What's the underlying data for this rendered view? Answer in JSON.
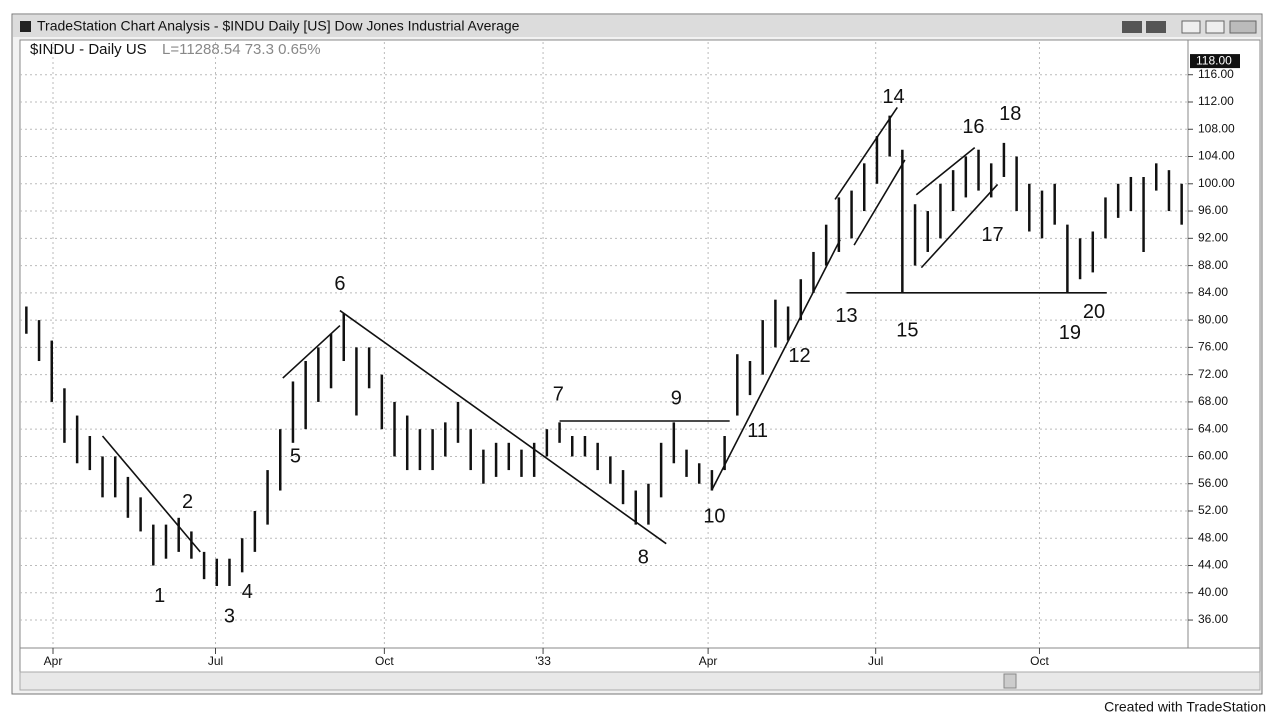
{
  "chart_data": {
    "type": "hilo",
    "window_title": "TradeStation Chart Analysis - $INDU Daily [US] Dow Jones Industrial Average",
    "title": "$INDU - Daily US",
    "subtitle": "L=11288.54 73.3 0.65%",
    "footer": "Created with TradeStation",
    "last_price": {
      "value": 118,
      "label": "118.00"
    },
    "high": [
      82,
      80,
      77,
      70,
      66,
      63,
      60,
      60,
      57,
      54,
      50,
      50,
      51,
      49,
      46,
      45,
      45,
      48,
      52,
      58,
      64,
      71,
      74,
      76,
      78,
      81,
      76,
      76,
      72,
      68,
      66,
      64,
      64,
      65,
      68,
      64,
      61,
      62,
      62,
      61,
      62,
      64,
      65,
      63,
      63,
      62,
      60,
      58,
      55,
      56,
      62,
      65,
      61,
      59,
      58,
      63,
      75,
      74,
      80,
      83,
      82,
      86,
      90,
      94,
      98,
      99,
      103,
      107,
      110,
      105,
      97,
      96,
      100,
      102,
      104,
      105,
      103,
      106,
      104,
      100,
      99,
      100,
      94,
      92,
      93,
      98,
      100,
      101,
      101,
      103,
      102,
      100
    ],
    "low": [
      78,
      74,
      68,
      62,
      59,
      58,
      54,
      54,
      51,
      49,
      44,
      45,
      46,
      45,
      42,
      41,
      41,
      43,
      46,
      50,
      55,
      62,
      64,
      68,
      70,
      74,
      66,
      70,
      64,
      60,
      58,
      58,
      58,
      60,
      62,
      58,
      56,
      57,
      58,
      57,
      57,
      60,
      62,
      60,
      60,
      58,
      56,
      53,
      50,
      50,
      54,
      59,
      57,
      56,
      55,
      58,
      66,
      69,
      72,
      76,
      77,
      80,
      84,
      88,
      90,
      92,
      96,
      100,
      104,
      84,
      88,
      90,
      92,
      96,
      98,
      99,
      98,
      101,
      96,
      93,
      92,
      94,
      84,
      86,
      87,
      92,
      95,
      96,
      90,
      99,
      96,
      94
    ],
    "color": "#111111",
    "xlim": [
      0,
      92
    ],
    "xticks": [
      {
        "value": 2.6,
        "label": "Apr"
      },
      {
        "value": 15.4,
        "label": "Jul"
      },
      {
        "value": 28.7,
        "label": "Oct"
      },
      {
        "value": 41.2,
        "label": "'33"
      },
      {
        "value": 54.2,
        "label": "Apr"
      },
      {
        "value": 67.4,
        "label": "Jul"
      },
      {
        "value": 80.3,
        "label": "Oct"
      }
    ],
    "ylim": [
      31.9,
      120.8
    ],
    "yticks": [
      {
        "value": 36,
        "label": "36.00"
      },
      {
        "value": 40,
        "label": "40.00"
      },
      {
        "value": 44,
        "label": "44.00"
      },
      {
        "value": 48,
        "label": "48.00"
      },
      {
        "value": 52,
        "label": "52.00"
      },
      {
        "value": 56,
        "label": "56.00"
      },
      {
        "value": 60,
        "label": "60.00"
      },
      {
        "value": 64,
        "label": "64.00"
      },
      {
        "value": 68,
        "label": "68.00"
      },
      {
        "value": 72,
        "label": "72.00"
      },
      {
        "value": 76,
        "label": "76.00"
      },
      {
        "value": 80,
        "label": "80.00"
      },
      {
        "value": 84,
        "label": "84.00"
      },
      {
        "value": 88,
        "label": "88.00"
      },
      {
        "value": 92,
        "label": "92.00"
      },
      {
        "value": 96,
        "label": "96.00"
      },
      {
        "value": 100,
        "label": "100.00"
      },
      {
        "value": 104,
        "label": "104.00"
      },
      {
        "value": 108,
        "label": "108.00"
      },
      {
        "value": 112,
        "label": "112.00"
      },
      {
        "value": 116,
        "label": "116.00"
      }
    ],
    "grid": true,
    "trendlines": [
      [
        6.5,
        63.0,
        14.2,
        46.0
      ],
      [
        20.7,
        71.5,
        25.2,
        79.2
      ],
      [
        25.2,
        81.4,
        50.9,
        47.2
      ],
      [
        42.5,
        65.2,
        55.9,
        65.2
      ],
      [
        54.5,
        55.1,
        64.6,
        91.8
      ],
      [
        64.2,
        97.7,
        69.1,
        111.2
      ],
      [
        65.7,
        91.0,
        69.7,
        103.5
      ],
      [
        70.6,
        98.4,
        75.2,
        105.3
      ],
      [
        71.0,
        87.7,
        77.0,
        99.9
      ],
      [
        65.1,
        84.0,
        85.6,
        84.0
      ]
    ],
    "annotations": [
      {
        "text": "1",
        "x": 11.0,
        "y": 39.4
      },
      {
        "text": "2",
        "x": 13.2,
        "y": 53.2
      },
      {
        "text": "3",
        "x": 16.5,
        "y": 36.4
      },
      {
        "text": "4",
        "x": 17.9,
        "y": 40.0
      },
      {
        "text": "5",
        "x": 21.7,
        "y": 59.9
      },
      {
        "text": "6",
        "x": 25.2,
        "y": 85.2
      },
      {
        "text": "7",
        "x": 42.4,
        "y": 69.0
      },
      {
        "text": "8",
        "x": 49.1,
        "y": 45.1
      },
      {
        "text": "9",
        "x": 51.7,
        "y": 68.4
      },
      {
        "text": "10",
        "x": 54.7,
        "y": 51.1
      },
      {
        "text": "11",
        "x": 58.1,
        "y": 63.6
      },
      {
        "text": "12",
        "x": 61.4,
        "y": 74.6
      },
      {
        "text": "13",
        "x": 65.1,
        "y": 80.5
      },
      {
        "text": "14",
        "x": 68.8,
        "y": 112.6
      },
      {
        "text": "15",
        "x": 69.9,
        "y": 78.4
      },
      {
        "text": "16",
        "x": 75.1,
        "y": 108.2
      },
      {
        "text": "17",
        "x": 76.6,
        "y": 92.4
      },
      {
        "text": "18",
        "x": 78.0,
        "y": 110.1
      },
      {
        "text": "19",
        "x": 82.7,
        "y": 78.0
      },
      {
        "text": "20",
        "x": 84.6,
        "y": 81.1
      }
    ]
  }
}
